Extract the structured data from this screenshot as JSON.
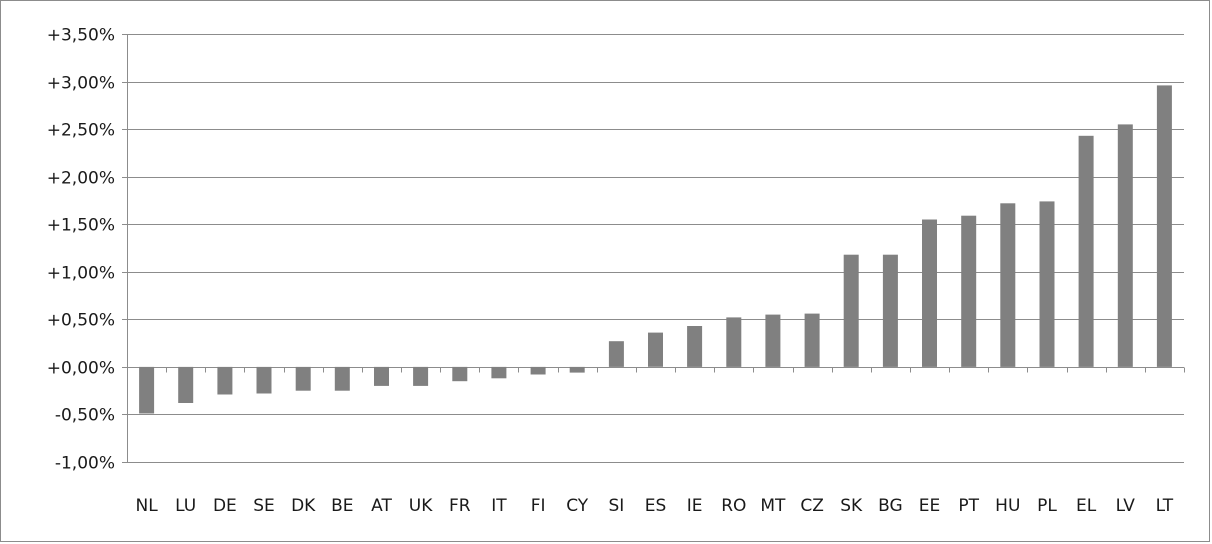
{
  "chart_data": {
    "type": "bar",
    "categories": [
      "NL",
      "LU",
      "DE",
      "SE",
      "DK",
      "BE",
      "AT",
      "UK",
      "FR",
      "IT",
      "FI",
      "CY",
      "SI",
      "ES",
      "IE",
      "RO",
      "MT",
      "CZ",
      "SK",
      "BG",
      "EE",
      "PT",
      "HU",
      "PL",
      "EL",
      "LV",
      "LT"
    ],
    "values": [
      -0.49,
      -0.38,
      -0.29,
      -0.28,
      -0.25,
      -0.25,
      -0.2,
      -0.2,
      -0.15,
      -0.12,
      -0.08,
      -0.06,
      0.27,
      0.36,
      0.43,
      0.52,
      0.55,
      0.56,
      1.18,
      1.18,
      1.55,
      1.59,
      1.72,
      1.74,
      2.43,
      2.55,
      2.96
    ],
    "ylim": [
      -1.0,
      3.5
    ],
    "yticks": [
      3.5,
      3.0,
      2.5,
      2.0,
      1.5,
      1.0,
      0.5,
      0.0,
      -0.5,
      -1.0
    ],
    "ytick_labels": [
      "+3,50%",
      "+3,00%",
      "+2,50%",
      "+2,00%",
      "+1,50%",
      "+1,00%",
      "+0,50%",
      "+0,00%",
      "-0,50%",
      "-1,00%"
    ],
    "title": "",
    "xlabel": "",
    "ylabel": "",
    "grid": true,
    "legend": "none",
    "bar_color": "#808080",
    "grid_color": "#8c8c8c",
    "axis_color": "#8c8c8c"
  }
}
